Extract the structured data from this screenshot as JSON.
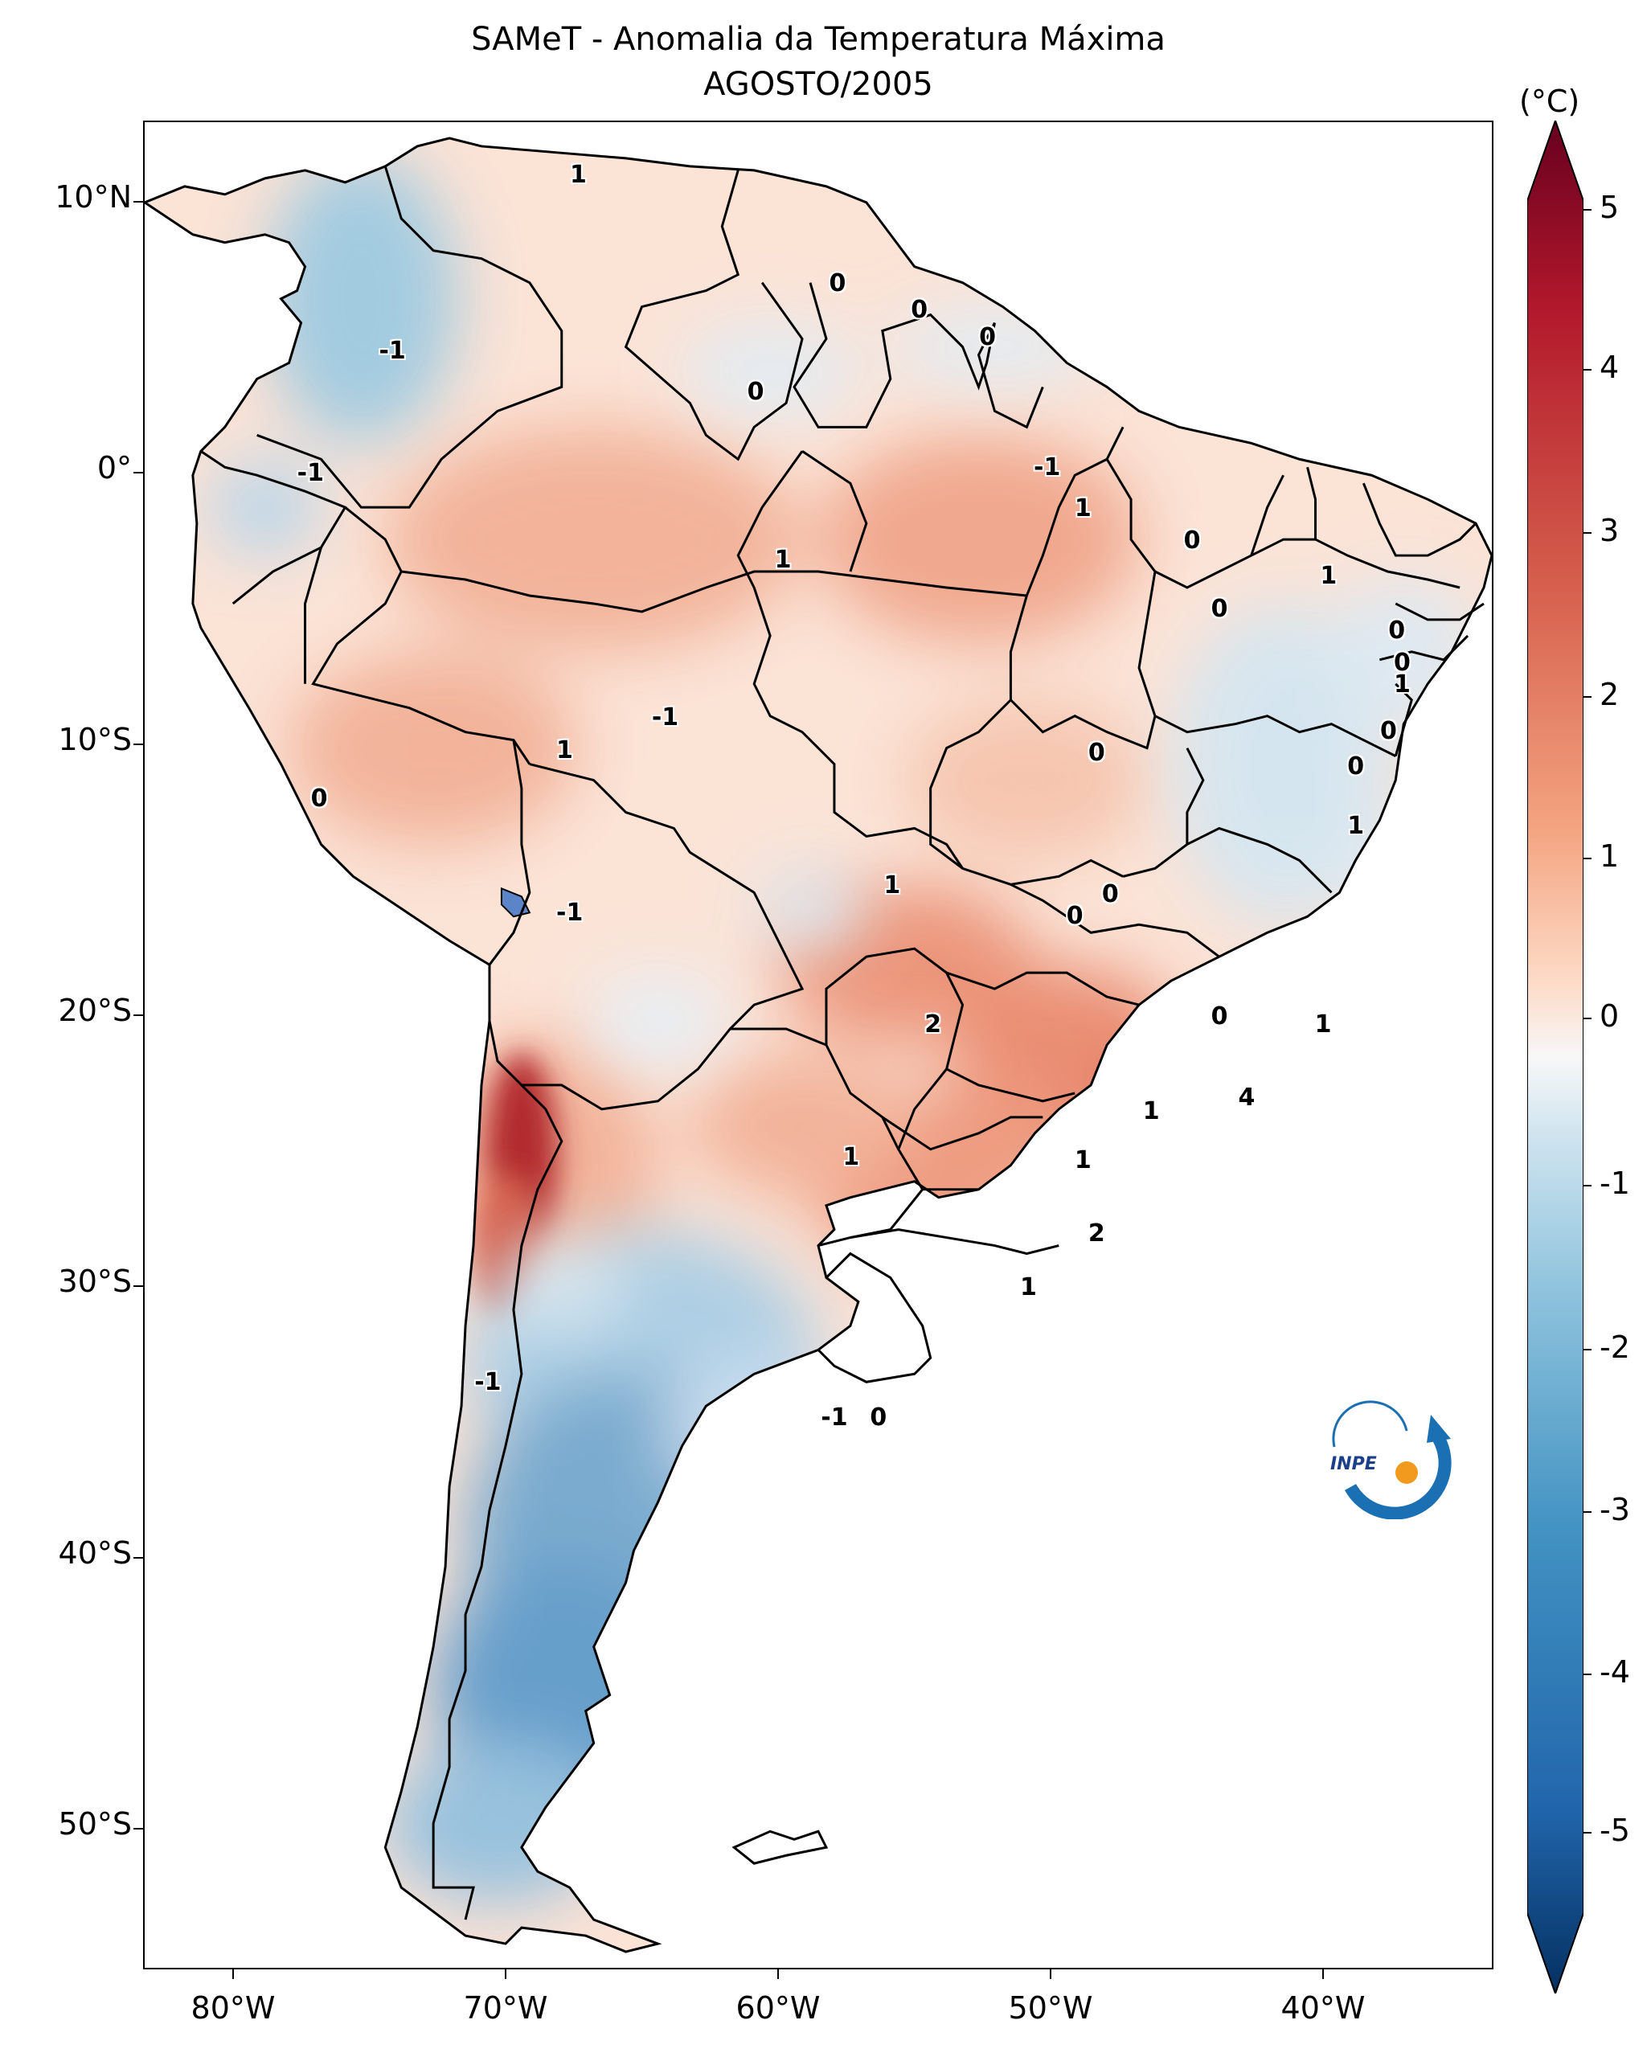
{
  "title": "SAMeT - Anomalia da Temperatura Máxima",
  "subtitle": "AGOSTO/2005",
  "axes": {
    "lat_labels": [
      "10°N",
      "0°",
      "10°S",
      "20°S",
      "30°S",
      "40°S",
      "50°S"
    ],
    "lon_labels": [
      "80°W",
      "70°W",
      "60°W",
      "50°W",
      "40°W"
    ]
  },
  "colorbar": {
    "unit": "(°C)",
    "ticks": [
      "5",
      "4",
      "3",
      "2",
      "1",
      "0",
      "-1",
      "-2",
      "-3",
      "-4",
      "-5"
    ],
    "colors": {
      "max": "#67001f",
      "high": "#d6604d",
      "mid": "#f7f7f7",
      "low": "#4393c3",
      "min": "#053061"
    }
  },
  "contour_labels": [
    {
      "text": "1",
      "lon": -67.5,
      "lat": 11.0
    },
    {
      "text": "0",
      "lon": -58.0,
      "lat": 7.0
    },
    {
      "text": "0",
      "lon": -55.0,
      "lat": 6.0
    },
    {
      "text": "0",
      "lon": -52.5,
      "lat": 5.0
    },
    {
      "text": "-1",
      "lon": -74.5,
      "lat": 4.5
    },
    {
      "text": "0",
      "lon": -61.0,
      "lat": 3.0
    },
    {
      "text": "-1",
      "lon": -77.5,
      "lat": 0.0
    },
    {
      "text": "-1",
      "lon": -50.5,
      "lat": 0.2
    },
    {
      "text": "1",
      "lon": -49.0,
      "lat": -1.3
    },
    {
      "text": "0",
      "lon": -45.0,
      "lat": -2.5
    },
    {
      "text": "1",
      "lon": -60.0,
      "lat": -3.2
    },
    {
      "text": "1",
      "lon": -40.0,
      "lat": -3.8
    },
    {
      "text": "0",
      "lon": -44.0,
      "lat": -5.0
    },
    {
      "text": "0",
      "lon": -37.5,
      "lat": -5.8
    },
    {
      "text": "0",
      "lon": -37.3,
      "lat": -7.0
    },
    {
      "text": "1",
      "lon": -37.3,
      "lat": -7.8
    },
    {
      "text": "-1",
      "lon": -64.5,
      "lat": -9.0
    },
    {
      "text": "0",
      "lon": -37.8,
      "lat": -9.5
    },
    {
      "text": "1",
      "lon": -68.0,
      "lat": -10.2
    },
    {
      "text": "0",
      "lon": -39.0,
      "lat": -10.8
    },
    {
      "text": "0",
      "lon": -48.5,
      "lat": -10.3
    },
    {
      "text": "0",
      "lon": -77.0,
      "lat": -12.0
    },
    {
      "text": "1",
      "lon": -39.0,
      "lat": -13.0
    },
    {
      "text": "1",
      "lon": -56.0,
      "lat": -15.2
    },
    {
      "text": "0",
      "lon": -48.0,
      "lat": -15.5
    },
    {
      "text": "0",
      "lon": -49.3,
      "lat": -16.3
    },
    {
      "text": "-1",
      "lon": -68.0,
      "lat": -16.2
    },
    {
      "text": "2",
      "lon": -54.5,
      "lat": -20.3
    },
    {
      "text": "0",
      "lon": -44.0,
      "lat": -20.0
    },
    {
      "text": "1",
      "lon": -40.2,
      "lat": -20.3
    },
    {
      "text": "4",
      "lon": -43.0,
      "lat": -23.0
    },
    {
      "text": "1",
      "lon": -46.5,
      "lat": -23.5
    },
    {
      "text": "1",
      "lon": -57.5,
      "lat": -25.2
    },
    {
      "text": "1",
      "lon": -49.0,
      "lat": -25.3
    },
    {
      "text": "2",
      "lon": -48.5,
      "lat": -28.0
    },
    {
      "text": "1",
      "lon": -51.0,
      "lat": -30.0
    },
    {
      "text": "-1",
      "lon": -71.0,
      "lat": -33.5
    },
    {
      "text": "-1",
      "lon": -58.3,
      "lat": -34.8
    },
    {
      "text": "0",
      "lon": -56.5,
      "lat": -34.8
    }
  ],
  "logo_text": "INPE"
}
